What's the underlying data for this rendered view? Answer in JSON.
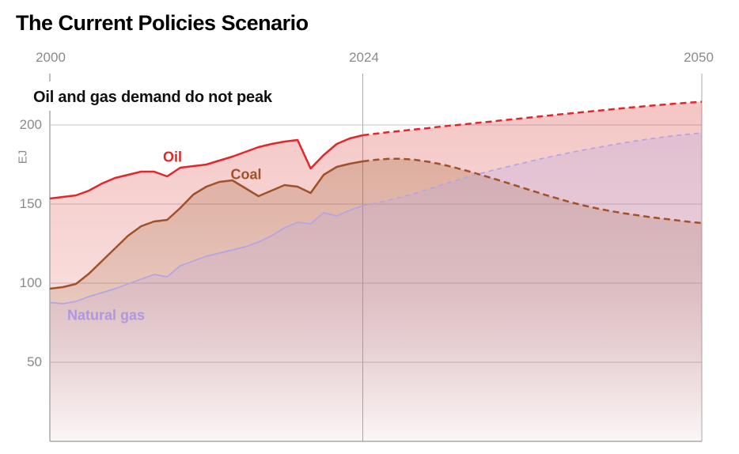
{
  "header": {
    "title": "The Current Policies Scenario",
    "subtitle": "Oil and gas demand do not peak"
  },
  "axes": {
    "unit_label": "EJ",
    "x_ticks": [
      "2000",
      "2024",
      "2050"
    ],
    "y_ticks": [
      "200",
      "150",
      "100",
      "50"
    ]
  },
  "series_labels": {
    "oil": "Oil",
    "coal": "Coal",
    "gas": "Natural gas"
  },
  "colors": {
    "oil_line": "#e0282a",
    "coal_line": "#a0512a",
    "gas_line": "#b4a4e2",
    "oil_fill": "#da413e",
    "coal_fill": "#9a5a28",
    "gas_fill": "#b5a6e3",
    "grid": "#c6c6c6",
    "axis": "#aaaaaa",
    "tick_text": "#8a8a8a"
  },
  "chart_data": {
    "type": "area",
    "title": "The Current Policies Scenario",
    "subtitle": "Oil and gas demand do not peak",
    "xlabel": "",
    "ylabel": "EJ",
    "x_range": [
      2000,
      2050
    ],
    "ylim": [
      0,
      235
    ],
    "x_tick_values": [
      2000,
      2024,
      2050
    ],
    "y_tick_values": [
      200,
      150,
      100,
      50
    ],
    "grid": "horizontal",
    "legend_position": "inline-labels",
    "history_until": 2024,
    "projection_style": "dashed",
    "years_start": 2000,
    "series": [
      {
        "name": "Oil",
        "line_color": "#e0282a",
        "fill_color": "#da413e",
        "values": [
          153.5,
          154.5,
          155.5,
          158.5,
          163,
          166.5,
          168.5,
          170.5,
          170.5,
          167.5,
          173,
          174,
          175,
          177.5,
          180,
          183,
          186,
          188,
          189.5,
          190.5,
          172.5,
          181,
          188,
          191.5,
          193.5,
          194.5,
          195.5,
          196.3,
          197.2,
          198,
          199,
          199.8,
          200.6,
          201.5,
          202.3,
          203.2,
          204,
          204.9,
          205.7,
          206.6,
          207.4,
          208.2,
          209,
          209.8,
          210.6,
          211.4,
          212.1,
          212.8,
          213.5,
          214.1,
          214.7
        ]
      },
      {
        "name": "Coal",
        "line_color": "#a0512a",
        "fill_color": "#9a5a28",
        "values": [
          96.5,
          97.5,
          99.5,
          106,
          114,
          122,
          130,
          136,
          139,
          140,
          147.5,
          156,
          161,
          164,
          165,
          160,
          155,
          158.5,
          162,
          161,
          157,
          168.5,
          173.5,
          175.5,
          177,
          178,
          178.6,
          178.6,
          178,
          176.8,
          175.2,
          173.2,
          171,
          168.6,
          166.2,
          163.6,
          161,
          158.4,
          155.8,
          153.4,
          151,
          149,
          147.2,
          145.6,
          144.2,
          143,
          141.8,
          140.8,
          139.8,
          138.8,
          138
        ]
      },
      {
        "name": "Natural gas",
        "line_color": "#b4a4e2",
        "fill_color": "#b5a6e3",
        "values": [
          87.8,
          87,
          88.5,
          91.5,
          94,
          96.5,
          99.5,
          102.5,
          105.5,
          104,
          111,
          114,
          117,
          119,
          121,
          123,
          126,
          130,
          135,
          138.5,
          137.5,
          144.5,
          142.5,
          146,
          149,
          150.5,
          152.5,
          154.5,
          156.8,
          159.3,
          162,
          164.5,
          167,
          169.3,
          171.4,
          173.4,
          175.4,
          177.3,
          179.2,
          181,
          182.7,
          184.3,
          185.8,
          187.3,
          188.7,
          190,
          191.2,
          192.3,
          193.3,
          194.2,
          195
        ]
      }
    ]
  }
}
